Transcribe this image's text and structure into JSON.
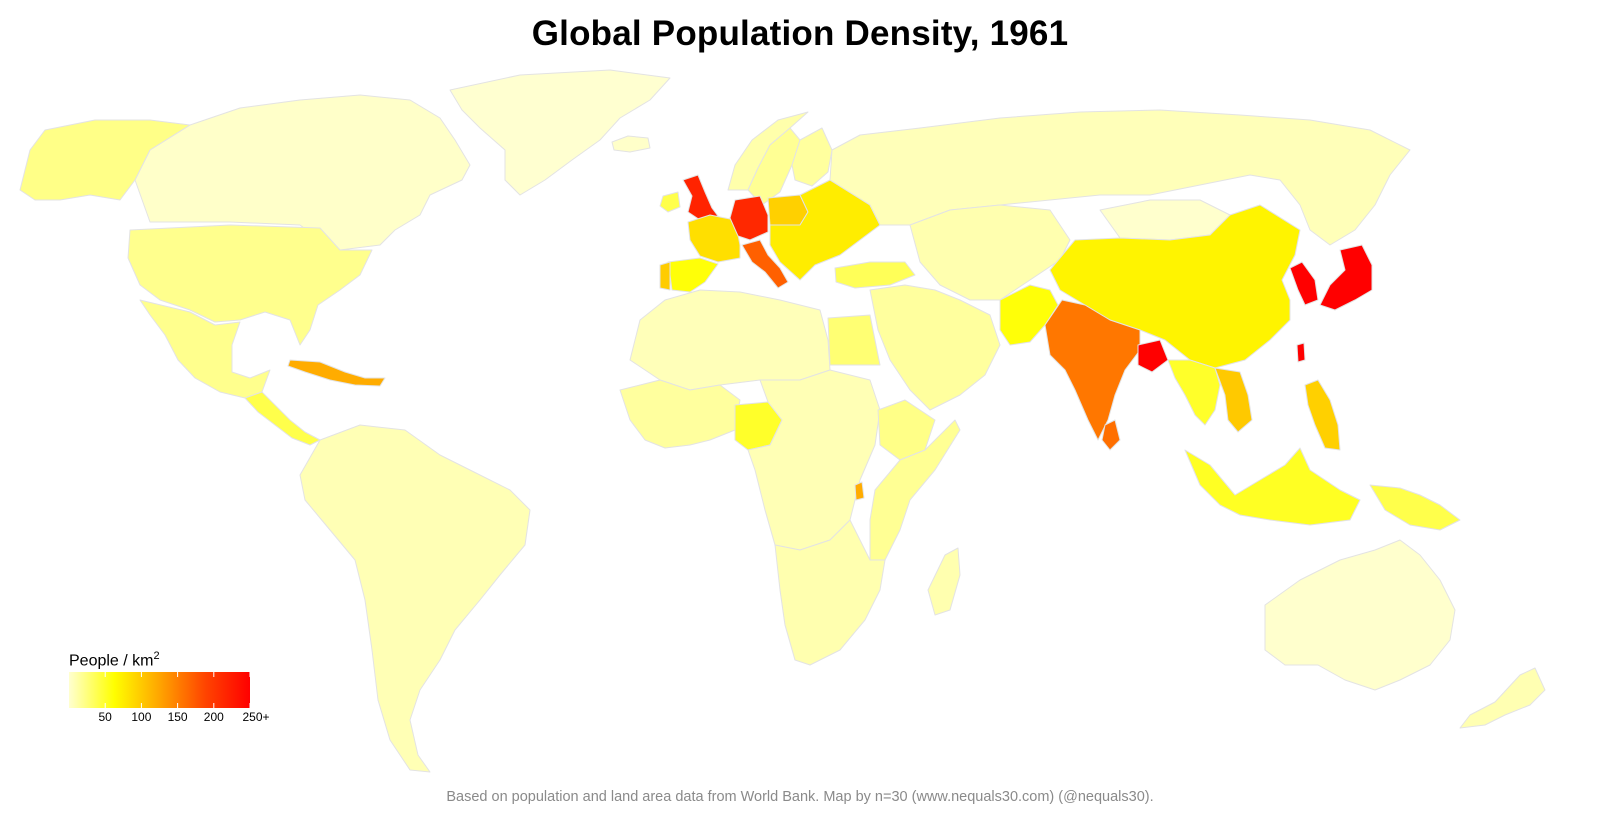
{
  "title": "Global Population Density,  1961",
  "caption": "Based on population and land area data from World Bank. Map by n=30 (www.nequals30.com) (@nequals30).",
  "legend": {
    "title_main": "People / km",
    "title_sup": "2",
    "ticks": [
      {
        "label": "50",
        "value": 50
      },
      {
        "label": "100",
        "value": 100
      },
      {
        "label": "150",
        "value": 150
      },
      {
        "label": "200",
        "value": 200
      },
      {
        "label": "250+",
        "value": 250
      }
    ],
    "min": 0,
    "max": 250,
    "colors": [
      "#ffffd0",
      "#ffff00",
      "#ffa500",
      "#ff4500",
      "#ff0000"
    ]
  },
  "palette": {
    "border": "#e6e6e6",
    "low": "#ffffcc",
    "light": "#ffffa0",
    "yellow": "#ffff66",
    "gold": "#ffee00",
    "amber": "#ffcc00",
    "orange": "#ff9900",
    "deep_orange": "#ff7700",
    "red_orange": "#ff4400",
    "red": "#ff0000",
    "dark_red": "#e60000"
  },
  "regions": [
    {
      "name": "Greenland",
      "density": 0
    },
    {
      "name": "Canada",
      "density": 2
    },
    {
      "name": "Alaska",
      "density": 22
    },
    {
      "name": "United States",
      "density": 20
    },
    {
      "name": "Mexico",
      "density": 20
    },
    {
      "name": "Central America",
      "density": 40
    },
    {
      "name": "Caribbean",
      "density": 120
    },
    {
      "name": "South America",
      "density": 8
    },
    {
      "name": "Iceland",
      "density": 2
    },
    {
      "name": "Norway",
      "density": 11
    },
    {
      "name": "Sweden",
      "density": 18
    },
    {
      "name": "Finland",
      "density": 15
    },
    {
      "name": "United Kingdom",
      "density": 218
    },
    {
      "name": "Ireland",
      "density": 40
    },
    {
      "name": "France",
      "density": 85
    },
    {
      "name": "Spain",
      "density": 60
    },
    {
      "name": "Portugal",
      "density": 98
    },
    {
      "name": "Germany",
      "density": 214
    },
    {
      "name": "Italy",
      "density": 170
    },
    {
      "name": "Poland",
      "density": 95
    },
    {
      "name": "Eastern Europe",
      "density": 75
    },
    {
      "name": "Russia",
      "density": 7
    },
    {
      "name": "Turkey",
      "density": 36
    },
    {
      "name": "Middle East",
      "density": 15
    },
    {
      "name": "Central Asia",
      "density": 10
    },
    {
      "name": "China",
      "density": 70
    },
    {
      "name": "Mongolia",
      "density": 1
    },
    {
      "name": "India",
      "density": 155
    },
    {
      "name": "Pakistan",
      "density": 60
    },
    {
      "name": "Bangladesh",
      "density": 350
    },
    {
      "name": "Sri Lanka",
      "density": 160
    },
    {
      "name": "Japan",
      "density": 255
    },
    {
      "name": "Korea",
      "density": 260
    },
    {
      "name": "Taiwan",
      "density": 310
    },
    {
      "name": "Southeast Asia",
      "density": 50
    },
    {
      "name": "Vietnam",
      "density": 100
    },
    {
      "name": "Philippines",
      "density": 95
    },
    {
      "name": "Indonesia",
      "density": 52
    },
    {
      "name": "Papua",
      "density": 40
    },
    {
      "name": "Australia",
      "density": 1
    },
    {
      "name": "New Zealand",
      "density": 9
    },
    {
      "name": "North Africa",
      "density": 7
    },
    {
      "name": "Egypt",
      "density": 28
    },
    {
      "name": "West Africa",
      "density": 15
    },
    {
      "name": "Nigeria",
      "density": 50
    },
    {
      "name": "Central Africa",
      "density": 8
    },
    {
      "name": "East Africa",
      "density": 18
    },
    {
      "name": "Ethiopia",
      "density": 22
    },
    {
      "name": "Rwanda",
      "density": 120
    },
    {
      "name": "Southern Africa",
      "density": 10
    },
    {
      "name": "Madagascar",
      "density": 10
    }
  ]
}
